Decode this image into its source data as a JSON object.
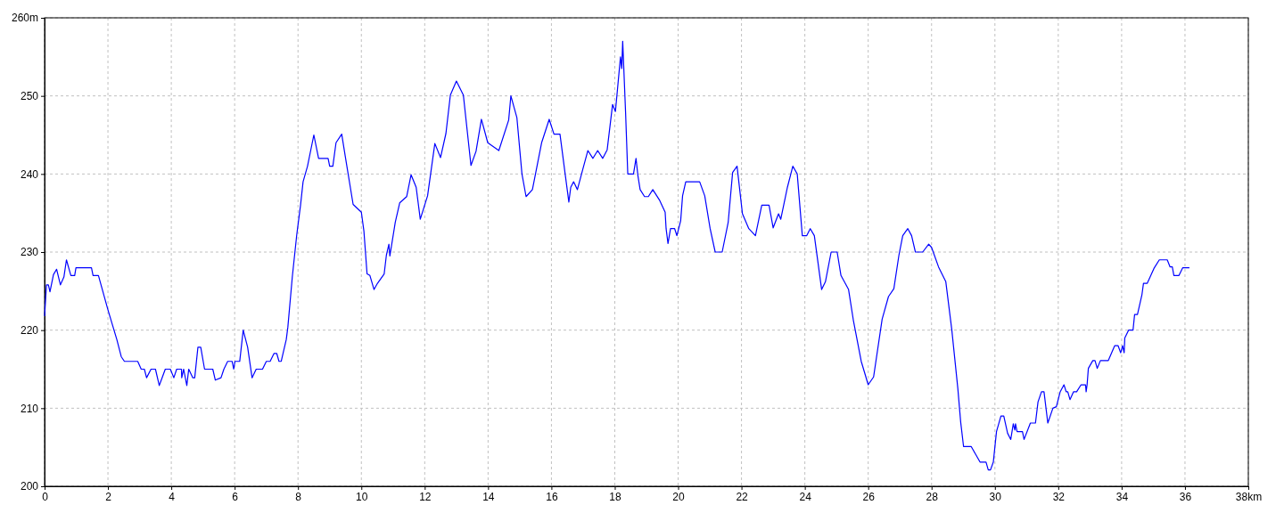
{
  "chart_data": {
    "type": "line",
    "xlim": [
      0,
      38
    ],
    "ylim": [
      200,
      260
    ],
    "xticks": [
      0,
      2,
      4,
      6,
      8,
      10,
      12,
      14,
      16,
      18,
      20,
      22,
      24,
      26,
      28,
      30,
      32,
      34,
      36,
      {
        "value": 38,
        "label": "38km"
      }
    ],
    "yticks": [
      200,
      210,
      220,
      230,
      240,
      250,
      {
        "value": 260,
        "label": "260m"
      }
    ],
    "grid": true,
    "marker": "none",
    "line_style": "solid",
    "series": [
      {
        "color": "#0000ff",
        "x": [
          0,
          0.06,
          0.12,
          0.17,
          0.28,
          0.38,
          0.5,
          0.61,
          0.69,
          0.83,
          0.95,
          0.99,
          1.48,
          1.53,
          1.7,
          2,
          2.28,
          2.42,
          2.52,
          2.94,
          3.05,
          3.15,
          3.22,
          3.36,
          3.5,
          3.62,
          3.72,
          3.81,
          3.97,
          4.08,
          4.17,
          4.32,
          4.33,
          4.39,
          4.49,
          4.55,
          4.68,
          4.74,
          4.84,
          4.93,
          5.05,
          5.31,
          5.39,
          5.57,
          5.66,
          5.78,
          5.92,
          5.97,
          6.01,
          6.16,
          6.27,
          6.41,
          6.55,
          6.68,
          6.88,
          7,
          7.12,
          7.24,
          7.33,
          7.4,
          7.47,
          7.63,
          7.68,
          7.82,
          7.96,
          8.08,
          8.16,
          8.3,
          8.5,
          8.65,
          8.95,
          9.0,
          9.1,
          9.2,
          9.38,
          9.49,
          9.74,
          10,
          10.08,
          10.18,
          10.27,
          10.4,
          10.51,
          10.72,
          10.79,
          10.87,
          10.9,
          11.07,
          11.21,
          11.43,
          11.57,
          11.73,
          11.86,
          12.09,
          12.32,
          12.5,
          12.67,
          12.81,
          13,
          13.22,
          13.46,
          13.62,
          13.79,
          13.99,
          14.34,
          14.65,
          14.72,
          14.91,
          15.07,
          15.2,
          15.4,
          15.69,
          15.93,
          16.08,
          16.27,
          16.44,
          16.55,
          16.61,
          16.7,
          16.82,
          16.99,
          17.15,
          17.31,
          17.46,
          17.62,
          17.76,
          17.93,
          18.02,
          18.18,
          18.22,
          18.25,
          18.34,
          18.41,
          18.59,
          18.67,
          18.73,
          18.8,
          18.94,
          19.06,
          19.2,
          19.42,
          19.59,
          19.62,
          19.68,
          19.76,
          19.89,
          19.96,
          20.08,
          20.14,
          20.24,
          20.68,
          20.84,
          21.01,
          21.17,
          21.39,
          21.58,
          21.72,
          21.86,
          22.03,
          22.23,
          22.44,
          22.64,
          22.87,
          23,
          23.17,
          23.24,
          23.45,
          23.62,
          23.76,
          23.92,
          24.06,
          24.17,
          24.3,
          24.53,
          24.65,
          24.83,
          25.02,
          25.14,
          25.38,
          25.53,
          25.78,
          26,
          26.17,
          26.44,
          26.64,
          26.81,
          26.97,
          27.09,
          27.25,
          27.37,
          27.49,
          27.72,
          27.91,
          28,
          28.22,
          28.45,
          28.64,
          28.83,
          28.92,
          29.01,
          29.25,
          29.39,
          29.53,
          29.72,
          29.79,
          29.86,
          29.95,
          30.05,
          30.19,
          30.28,
          30.4,
          30.5,
          30.58,
          30.63,
          30.65,
          30.7,
          30.87,
          30.92,
          31.12,
          31.28,
          31.36,
          31.47,
          31.55,
          31.67,
          31.83,
          31.94,
          32.06,
          32.18,
          32.25,
          32.3,
          32.37,
          32.48,
          32.58,
          32.72,
          32.86,
          32.88,
          32.91,
          32.95,
          33.09,
          33.16,
          33.23,
          33.33,
          33.58,
          33.78,
          33.89,
          33.97,
          34.03,
          34.08,
          34.1,
          34.22,
          34.36,
          34.41,
          34.5,
          34.64,
          34.69,
          34.81,
          35.02,
          35.19,
          35.44,
          35.53,
          35.6,
          35.65,
          35.81,
          35.93,
          36.14
        ],
        "values": [
          221.8,
          225.8,
          225.8,
          224.9,
          227.1,
          227.8,
          225.8,
          226.8,
          229,
          227,
          227,
          228,
          228,
          227,
          227,
          222.6,
          218.8,
          216.6,
          216,
          216,
          215,
          215,
          213.9,
          215,
          215,
          212.9,
          214,
          215,
          215,
          213.9,
          215,
          215,
          213.9,
          215,
          212.9,
          215,
          213.9,
          213.9,
          217.8,
          217.8,
          215,
          215,
          213.6,
          213.9,
          215,
          216,
          216,
          215,
          216,
          216,
          220,
          217.8,
          213.9,
          215,
          215,
          216,
          216,
          217,
          217,
          216,
          216,
          218.8,
          220.4,
          226.8,
          232.2,
          236,
          239,
          241,
          245,
          242,
          242,
          241,
          241,
          244,
          245.1,
          242.3,
          236.1,
          235.1,
          232.7,
          227.2,
          227,
          225.2,
          226,
          227.2,
          229.6,
          231,
          229.5,
          233.8,
          236.3,
          237.1,
          239.9,
          238.3,
          234.2,
          237.2,
          243.9,
          242.1,
          245.2,
          250.1,
          251.9,
          250.1,
          241.1,
          242.9,
          247,
          244,
          243,
          246.9,
          250,
          247.2,
          240,
          237.1,
          238,
          244,
          247,
          245.1,
          245.1,
          239.8,
          236.4,
          238.3,
          239,
          238,
          240.6,
          243,
          242,
          243,
          242,
          243.1,
          248.9,
          248,
          255,
          253.5,
          257,
          248,
          240,
          240,
          242,
          239.8,
          238,
          237.1,
          237.1,
          238,
          236.6,
          235.1,
          233,
          231.1,
          233,
          233,
          232.1,
          234,
          237.2,
          239,
          239,
          237.2,
          233,
          230,
          230,
          233.8,
          240.2,
          241,
          234.9,
          233,
          232.1,
          236,
          236,
          233.1,
          234.9,
          234.2,
          238.3,
          241,
          240,
          232.1,
          232.1,
          233,
          232.1,
          225.2,
          226.2,
          230,
          230,
          227,
          225.2,
          221.3,
          216,
          213,
          214,
          221.4,
          224.3,
          225.3,
          229.6,
          232.1,
          233,
          232.1,
          230,
          230,
          231,
          230.6,
          228.1,
          226.2,
          220,
          212.5,
          208.2,
          205.1,
          205.1,
          204.1,
          203.1,
          203.1,
          202.1,
          202.1,
          203.1,
          207,
          209,
          209,
          206.8,
          206,
          208,
          207.2,
          208,
          207,
          207,
          206,
          208.1,
          208.1,
          210.8,
          212.1,
          212.1,
          208.1,
          210,
          210.2,
          212.1,
          213,
          212.1,
          212.1,
          211.1,
          212.1,
          212.1,
          213,
          213,
          212.1,
          213,
          215.1,
          216.1,
          216.1,
          215.1,
          216.1,
          216.1,
          218,
          218,
          217.1,
          218,
          217.1,
          219,
          220,
          220,
          222,
          222,
          224.5,
          226,
          226,
          227.9,
          229,
          229,
          228.1,
          228.1,
          227,
          227,
          228,
          228
        ]
      }
    ]
  }
}
